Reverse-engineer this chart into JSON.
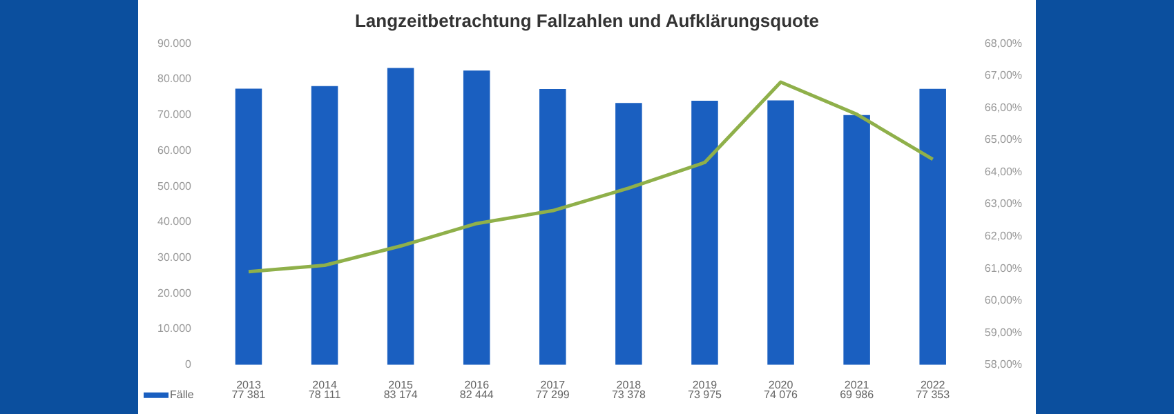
{
  "chart_data": {
    "type": "bar",
    "title": "Langzeitbetrachtung Fallzahlen und Aufklärungsquote",
    "categories": [
      "2013",
      "2014",
      "2015",
      "2016",
      "2017",
      "2018",
      "2019",
      "2020",
      "2021",
      "2022"
    ],
    "series": [
      {
        "name": "Fälle",
        "color": "#1a5fc0",
        "values": [
          77381,
          78111,
          83174,
          82444,
          77299,
          73378,
          73975,
          74076,
          69986,
          77353
        ],
        "value_labels": [
          "77 381",
          "78 111",
          "83 174",
          "82 444",
          "77 299",
          "73 378",
          "73 975",
          "74 076",
          "69 986",
          "77 353"
        ]
      },
      {
        "type": "line",
        "axis": "y2",
        "color": "#8fb04a",
        "values": [
          60.9,
          61.1,
          61.7,
          62.4,
          62.8,
          63.5,
          64.3,
          66.8,
          65.8,
          64.4
        ]
      }
    ],
    "ylim": [
      0,
      90000
    ],
    "yticks": [
      0,
      {
        "value": 10000,
        "label": "10.000"
      },
      {
        "value": 20000,
        "label": "20.000"
      },
      {
        "value": 30000,
        "label": "30.000"
      },
      {
        "value": 40000,
        "label": "40.000"
      },
      {
        "value": 50000,
        "label": "50.000"
      },
      {
        "value": 60000,
        "label": "60.000"
      },
      {
        "value": 70000,
        "label": "70.000"
      },
      {
        "value": 80000,
        "label": "80.000"
      },
      {
        "value": 90000,
        "label": "90.000"
      }
    ],
    "y2lim": [
      58,
      68
    ],
    "y2ticks": [
      {
        "value": 58,
        "label": "58,00%"
      },
      {
        "value": 59,
        "label": "59,00%"
      },
      {
        "value": 60,
        "label": "60,00%"
      },
      {
        "value": 61,
        "label": "61,00%"
      },
      {
        "value": 62,
        "label": "62,00%"
      },
      {
        "value": 63,
        "label": "63,00%"
      },
      {
        "value": 64,
        "label": "64,00%"
      },
      {
        "value": 65,
        "label": "65,00%"
      },
      {
        "value": 66,
        "label": "66,00%"
      },
      {
        "value": 67,
        "label": "67,00%"
      },
      {
        "value": 68,
        "label": "68,00%"
      }
    ],
    "grid": false,
    "legend": "bottom left",
    "marker": "none",
    "line_style": "solid"
  }
}
